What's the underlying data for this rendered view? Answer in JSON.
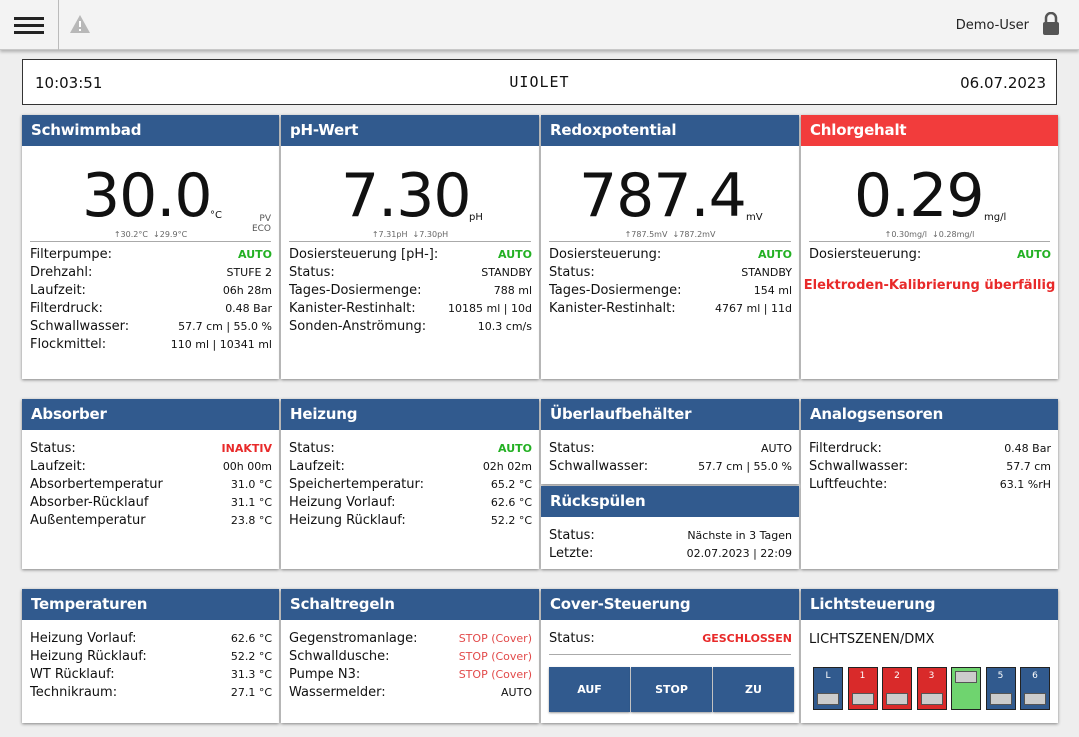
{
  "topbar": {
    "user": "Demo-User"
  },
  "info": {
    "time": "10:03:51",
    "brand": "UIOLET",
    "date": "06.07.2023"
  },
  "schwimmbad": {
    "title": "Schwimmbad",
    "value": "30.0",
    "unit": "°C",
    "mode1": "PV",
    "mode2": "ECO",
    "max": "↑30.2°C",
    "min": "↓29.9°C",
    "rows": [
      {
        "label": "Filterpumpe:",
        "value": "AUTO"
      },
      {
        "label": "Drehzahl:",
        "value": "STUFE 2"
      },
      {
        "label": "Laufzeit:",
        "value": "06h 28m"
      },
      {
        "label": "Filterdruck:",
        "value": "0.48 Bar"
      },
      {
        "label": "Schwallwasser:",
        "value": "57.7 cm | 55.0 %"
      },
      {
        "label": "Flockmittel:",
        "value": "110 ml | 10341 ml"
      }
    ]
  },
  "ph": {
    "title": "pH-Wert",
    "value": "7.30",
    "unit": "pH",
    "max": "↑7.31pH",
    "min": "↓7.30pH",
    "rows": [
      {
        "label": "Dosiersteuerung [pH-]:",
        "value": "AUTO"
      },
      {
        "label": "Status:",
        "value": "STANDBY"
      },
      {
        "label": "Tages-Dosiermenge:",
        "value": "788 ml"
      },
      {
        "label": "Kanister-Restinhalt:",
        "value": "10185 ml | 10d"
      },
      {
        "label": "Sonden-Anströmung:",
        "value": "10.3 cm/s"
      }
    ]
  },
  "redox": {
    "title": "Redoxpotential",
    "value": "787.4",
    "unit": "mV",
    "max": "↑787.5mV",
    "min": "↓787.2mV",
    "rows": [
      {
        "label": "Dosiersteuerung:",
        "value": "AUTO"
      },
      {
        "label": "Status:",
        "value": "STANDBY"
      },
      {
        "label": "Tages-Dosiermenge:",
        "value": "154 ml"
      },
      {
        "label": "Kanister-Restinhalt:",
        "value": "4767 ml | 11d"
      }
    ]
  },
  "chlor": {
    "title": "Chlorgehalt",
    "value": "0.29",
    "unit": "mg/l",
    "max": "↑0.30mg/l",
    "min": "↓0.28mg/l",
    "rows": [
      {
        "label": "Dosiersteuerung:",
        "value": "AUTO"
      }
    ],
    "alert": "Elektroden-Kalibrierung überfällig"
  },
  "absorber": {
    "title": "Absorber",
    "rows": [
      {
        "label": "Status:",
        "value": "INAKTIV"
      },
      {
        "label": "Laufzeit:",
        "value": "00h 00m"
      },
      {
        "label": "Absorbertemperatur",
        "value": "31.0 °C"
      },
      {
        "label": "Absorber-Rücklauf",
        "value": "31.1 °C"
      },
      {
        "label": "Außentemperatur",
        "value": "23.8 °C"
      }
    ]
  },
  "heizung": {
    "title": "Heizung",
    "rows": [
      {
        "label": "Status:",
        "value": "AUTO"
      },
      {
        "label": "Laufzeit:",
        "value": "02h 02m"
      },
      {
        "label": "Speichertemperatur:",
        "value": "65.2 °C"
      },
      {
        "label": "Heizung Vorlauf:",
        "value": "62.6 °C"
      },
      {
        "label": "Heizung Rücklauf:",
        "value": "52.2 °C"
      }
    ]
  },
  "ueberlauf": {
    "title": "Überlaufbehälter",
    "rows": [
      {
        "label": "Status:",
        "value": "AUTO"
      },
      {
        "label": "Schwallwasser:",
        "value": "57.7 cm | 55.0 %"
      }
    ]
  },
  "rueckspuelen": {
    "title": "Rückspülen",
    "rows": [
      {
        "label": "Status:",
        "value": "Nächste in 3 Tagen"
      },
      {
        "label": "Letzte:",
        "value": "02.07.2023 | 22:09"
      }
    ]
  },
  "analog": {
    "title": "Analogsensoren",
    "rows": [
      {
        "label": "Filterdruck:",
        "value": "0.48 Bar"
      },
      {
        "label": "Schwallwasser:",
        "value": "57.7 cm"
      },
      {
        "label": "Luftfeuchte:",
        "value": "63.1 %rH"
      }
    ]
  },
  "temperaturen": {
    "title": "Temperaturen",
    "rows": [
      {
        "label": "Heizung Vorlauf:",
        "value": "62.6 °C"
      },
      {
        "label": "Heizung Rücklauf:",
        "value": "52.2 °C"
      },
      {
        "label": "WT Rücklauf:",
        "value": "31.3 °C"
      },
      {
        "label": "Technikraum:",
        "value": "27.1 °C"
      }
    ]
  },
  "schaltregeln": {
    "title": "Schaltregeln",
    "rows": [
      {
        "label": "Gegenstromanlage:",
        "value": "STOP (Cover)"
      },
      {
        "label": "Schwalldusche:",
        "value": "STOP (Cover)"
      },
      {
        "label": "Pumpe N3:",
        "value": "STOP (Cover)"
      },
      {
        "label": "Wassermelder:",
        "value": "AUTO"
      }
    ]
  },
  "cover": {
    "title": "Cover-Steuerung",
    "status_label": "Status:",
    "status_value": "GESCHLOSSEN",
    "btn_auf": "AUF",
    "btn_stop": "STOP",
    "btn_zu": "ZU"
  },
  "licht": {
    "title": "Lichtsteuerung",
    "subtitle": "LICHTSZENEN/DMX",
    "scenes": [
      {
        "label": "L",
        "color": "#315a8e"
      },
      {
        "label": "1",
        "color": "#d92a2a"
      },
      {
        "label": "2",
        "color": "#d92a2a"
      },
      {
        "label": "3",
        "color": "#d92a2a"
      },
      {
        "label": "",
        "color": "#6fd46f"
      },
      {
        "label": "5",
        "color": "#315a8e"
      },
      {
        "label": "6",
        "color": "#315a8e"
      }
    ]
  },
  "colors": {
    "header": "#315a8e",
    "alarm": "#f23c3c",
    "ok": "#23b023"
  }
}
